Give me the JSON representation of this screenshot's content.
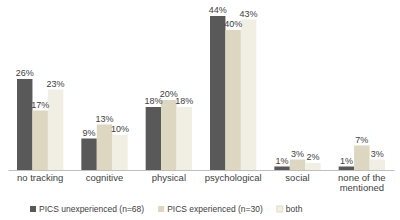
{
  "chart_data": {
    "type": "bar",
    "categories": [
      "no tracking",
      "cognitive",
      "physical",
      "psychological",
      "social",
      "none of the mentioned"
    ],
    "series": [
      {
        "name": "PICS unexperienced (n=68)",
        "color": "#595959",
        "values": [
          26,
          9,
          18,
          44,
          1,
          1
        ],
        "value_labels": [
          "26%",
          "9%",
          "18%",
          "44%",
          "1%",
          "1%"
        ]
      },
      {
        "name": "PICS experienced (n=30)",
        "color": "#ddd6c1",
        "values": [
          17,
          13,
          20,
          40,
          3,
          7
        ],
        "value_labels": [
          "17%",
          "13%",
          "20%",
          "40%",
          "3%",
          "7%"
        ]
      },
      {
        "name": "both",
        "color": "#f1eee4",
        "values": [
          23,
          10,
          18,
          43,
          2,
          3
        ],
        "value_labels": [
          "23%",
          "10%",
          "18%",
          "43%",
          "2%",
          "3%"
        ]
      }
    ],
    "ylim": [
      0,
      44
    ],
    "data_labels": true,
    "tick_labels": "x",
    "legend": "bottom"
  }
}
